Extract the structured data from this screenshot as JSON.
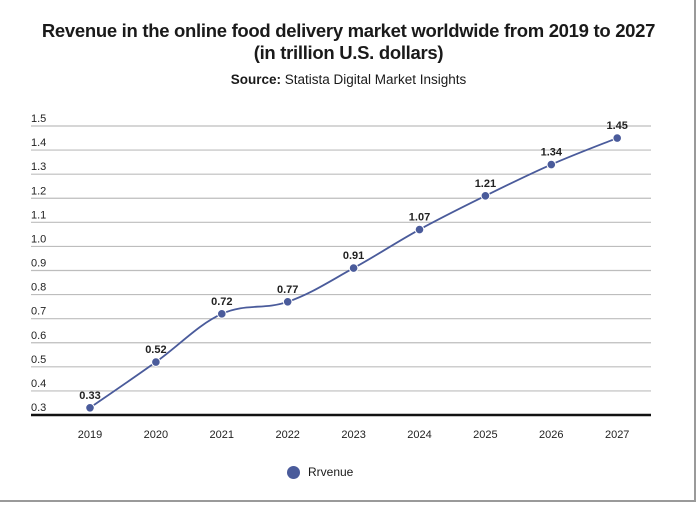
{
  "colors": {
    "series": "#4a5b9b",
    "grid": "#bdbdbd",
    "axis": "#111111"
  },
  "header": {
    "title_line1": "Revenue in the online food delivery market worldwide from 2019 to 2027",
    "title_line2": "(in trillion U.S. dollars)",
    "source_label": "Source:",
    "source_text": " Statista Digital Market Insights"
  },
  "chart_data": {
    "type": "line",
    "title": "Revenue in the online food delivery market worldwide from 2019 to 2027 (in trillion U.S. dollars)",
    "subtitle": "Source: Statista Digital Market Insights",
    "xlabel": "",
    "ylabel": "",
    "categories": [
      "2019",
      "2020",
      "2021",
      "2022",
      "2023",
      "2024",
      "2025",
      "2026",
      "2027"
    ],
    "series": [
      {
        "name": "Rrvenue",
        "values": [
          0.33,
          0.52,
          0.72,
          0.77,
          0.91,
          1.07,
          1.21,
          1.34,
          1.45
        ],
        "data_labels": [
          "0.33",
          "0.52",
          "0.72",
          "0.77",
          "0.91",
          "1.07",
          "1.21",
          "1.34",
          "1.45"
        ]
      }
    ],
    "ylim": [
      0.3,
      1.5
    ],
    "yticks": [
      "0.3",
      "0.4",
      "0.5",
      "0.6",
      "0.7",
      "0.8",
      "0.9",
      "1.0",
      "1.1",
      "1.2",
      "1.3",
      "1.4",
      "1.5"
    ],
    "grid": true,
    "legend": {
      "position": "bottom-center",
      "entries": [
        "Rrvenue"
      ]
    }
  }
}
